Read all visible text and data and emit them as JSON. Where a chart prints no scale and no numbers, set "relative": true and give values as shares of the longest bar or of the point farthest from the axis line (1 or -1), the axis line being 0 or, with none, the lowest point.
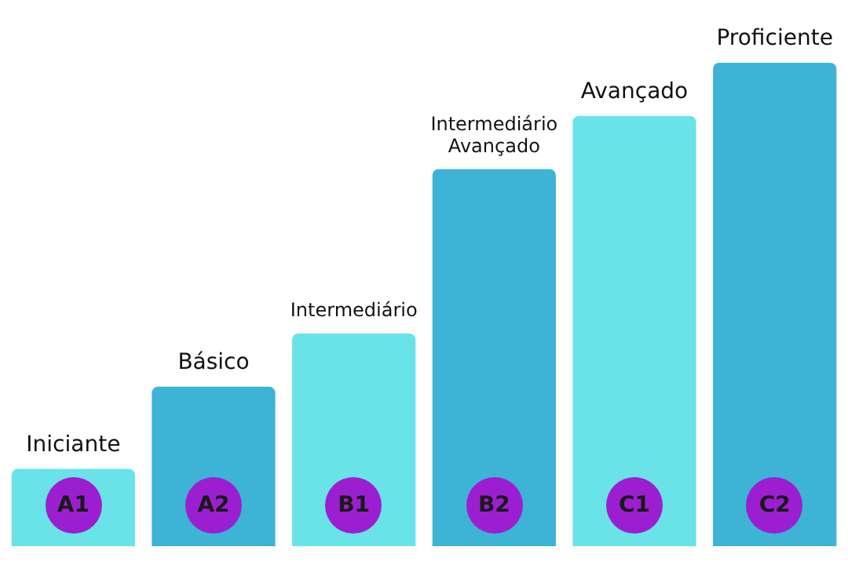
{
  "chart_data": {
    "type": "bar",
    "relative": true,
    "categories": [
      "A1",
      "A2",
      "B1",
      "B2",
      "C1",
      "C2"
    ],
    "values": [
      0.16,
      0.33,
      0.44,
      0.78,
      0.89,
      1
    ],
    "colors": [
      "#6ae3e8",
      "#3db3d6",
      "#6ae3e8",
      "#3db3d6",
      "#6ae3e8",
      "#3db3d6"
    ],
    "annotations": [
      {
        "text": "Iniciante",
        "x": "A1",
        "y": 0.16
      },
      {
        "text": "Básico",
        "x": "A2",
        "y": 0.33
      },
      {
        "text": "Intermediário",
        "x": "B1",
        "y": 0.44
      },
      {
        "text": "Intermediário\nAvançado",
        "x": "B2",
        "y": 0.78
      },
      {
        "text": "Avançado",
        "x": "C1",
        "y": 0.89
      },
      {
        "text": "Proficiente",
        "x": "C2",
        "y": 1
      }
    ]
  }
}
